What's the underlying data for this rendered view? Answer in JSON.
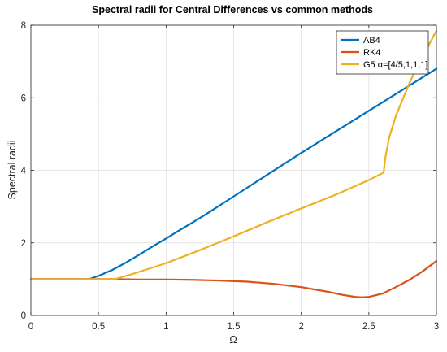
{
  "chart_data": {
    "type": "line",
    "title": "Spectral radii for Central Differences vs common methods",
    "xlabel": "Ω",
    "ylabel": "Spectral radii",
    "xlim": [
      0,
      3
    ],
    "ylim": [
      0,
      8
    ],
    "xticks": [
      0,
      0.5,
      1,
      1.5,
      2,
      2.5,
      3
    ],
    "xtick_labels": [
      "0",
      "0.5",
      "1",
      "1.5",
      "2",
      "2.5",
      "3"
    ],
    "yticks": [
      0,
      2,
      4,
      6,
      8
    ],
    "ytick_labels": [
      "0",
      "2",
      "4",
      "6",
      "8"
    ],
    "grid": true,
    "legend_position": "top-right",
    "series": [
      {
        "name": "AB4",
        "color": "#0072BD",
        "x": [
          0,
          0.2,
          0.43,
          0.5,
          0.6,
          0.7,
          0.8,
          0.9,
          1.0,
          1.1,
          1.2,
          1.3,
          1.5,
          1.75,
          2.0,
          2.25,
          2.5,
          2.75,
          3.0
        ],
        "y": [
          1.0,
          1.0,
          1.0,
          1.09,
          1.25,
          1.45,
          1.67,
          1.9,
          2.12,
          2.35,
          2.57,
          2.8,
          3.28,
          3.88,
          4.48,
          5.06,
          5.64,
          6.22,
          6.8
        ]
      },
      {
        "name": "RK4",
        "color": "#D95319",
        "x": [
          0,
          0.2,
          0.4,
          0.6,
          0.8,
          1.0,
          1.2,
          1.4,
          1.6,
          1.8,
          2.0,
          2.2,
          2.3,
          2.4,
          2.45,
          2.5,
          2.6,
          2.7,
          2.8,
          2.9,
          3.0
        ],
        "y": [
          1.0,
          1.0,
          1.0,
          1.0,
          0.99,
          0.99,
          0.98,
          0.96,
          0.93,
          0.87,
          0.78,
          0.65,
          0.57,
          0.51,
          0.5,
          0.51,
          0.6,
          0.78,
          0.98,
          1.22,
          1.5
        ]
      },
      {
        "name": "G5 α=[4/5,1,1,1]",
        "color": "#EDB120",
        "x": [
          0,
          0.62,
          0.75,
          1.0,
          1.25,
          1.5,
          1.75,
          2.0,
          2.25,
          2.5,
          2.6,
          2.61,
          2.62,
          2.65,
          2.7,
          2.75,
          2.8,
          2.85,
          2.9,
          2.95,
          3.0
        ],
        "y": [
          1.0,
          1.0,
          1.14,
          1.44,
          1.8,
          2.18,
          2.57,
          2.95,
          3.32,
          3.73,
          3.92,
          3.95,
          4.3,
          4.9,
          5.5,
          5.95,
          6.4,
          6.8,
          7.15,
          7.5,
          7.85
        ]
      }
    ]
  }
}
